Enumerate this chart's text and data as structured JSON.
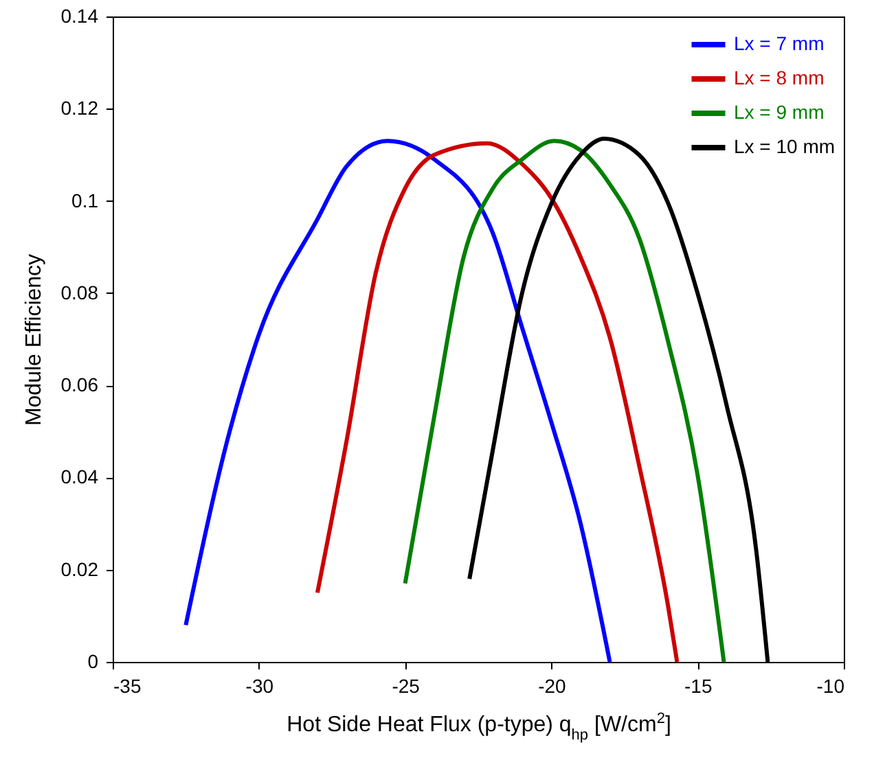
{
  "chart_data": {
    "type": "line",
    "xlabel": "Hot Side Heat Flux (p-type) q$_{hp}$ [W/cm$^{2}$]",
    "ylabel": "Module Efficiency",
    "xlim": [
      -35,
      -10
    ],
    "xticks": [
      -35,
      -30,
      -25,
      -20,
      -15,
      -10
    ],
    "ylim": [
      0,
      0.14
    ],
    "yticks": [
      0,
      0.02,
      0.04,
      0.06,
      0.08,
      0.1,
      0.12,
      0.14
    ],
    "grid": false,
    "legend": "top right",
    "marker": "none",
    "line_style": "solid",
    "series": [
      {
        "name": "Lx = 7 mm",
        "color": "#0000ff",
        "x": [
          -32.5,
          -31,
          -30,
          -28,
          -27,
          -25.6,
          -24,
          -22,
          -21,
          -20,
          -19,
          -18
        ],
        "values": [
          0.008,
          0.05,
          0.071,
          0.096,
          0.1075,
          0.113,
          0.109,
          0.093,
          0.0725,
          0.052,
          0.03,
          0
        ]
      },
      {
        "name": "Lx = 8 mm",
        "color": "#cc0000",
        "x": [
          -28,
          -27,
          -26,
          -25,
          -24,
          -22.2,
          -21,
          -20,
          -19,
          -18,
          -17,
          -16,
          -15.7
        ],
        "values": [
          0.015,
          0.048,
          0.0845,
          0.1027,
          0.11,
          0.1125,
          0.108,
          0.1006,
          0.0878,
          0.0704,
          0.0427,
          0.0118,
          0
        ]
      },
      {
        "name": "Lx = 9 mm",
        "color": "#008000",
        "x": [
          -25,
          -24,
          -23,
          -22,
          -21,
          -19.9,
          -19,
          -18,
          -17,
          -16,
          -15,
          -14.1
        ],
        "values": [
          0.017,
          0.0534,
          0.0878,
          0.1027,
          0.109,
          0.113,
          0.111,
          0.1036,
          0.092,
          0.0693,
          0.0406,
          0
        ]
      },
      {
        "name": "Lx = 10 mm",
        "color": "#000000",
        "x": [
          -22.8,
          -22,
          -21,
          -20,
          -19,
          -18.2,
          -17,
          -16,
          -15,
          -14,
          -13,
          -12.6
        ],
        "values": [
          0.018,
          0.046,
          0.08,
          0.0994,
          0.11,
          0.1135,
          0.11,
          0.0994,
          0.08,
          0.0555,
          0.0245,
          0
        ]
      }
    ]
  }
}
